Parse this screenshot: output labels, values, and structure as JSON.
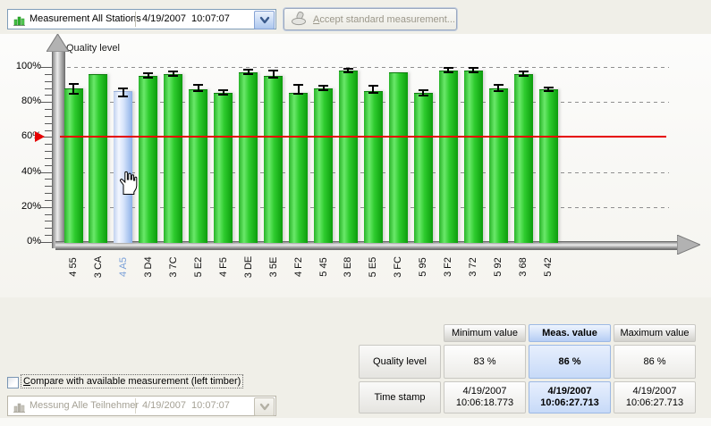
{
  "toolbar": {
    "measurement_combo": {
      "icon": "bar-chart-icon",
      "label": "Measurement All Stations",
      "datetime": "4/19/2007  10:07:07"
    },
    "accept_button": {
      "icon": "stamp-icon",
      "accel": "A",
      "rest": "ccept standard measurement..."
    }
  },
  "chart_data": {
    "type": "bar",
    "title": "Quality level",
    "xlabel": "",
    "ylabel": "",
    "ylim": [
      0,
      100
    ],
    "y_ticks": [
      {
        "v": 100,
        "label": "100%"
      },
      {
        "v": 80,
        "label": "80%"
      },
      {
        "v": 60,
        "label": "60%"
      },
      {
        "v": 40,
        "label": "40%"
      },
      {
        "v": 20,
        "label": "20%"
      },
      {
        "v": 0,
        "label": "0%"
      }
    ],
    "gridlines_pct": [
      100,
      80,
      40,
      20
    ],
    "grid": "dashed",
    "threshold_pct": 60,
    "threshold_color": "#e60000",
    "bar_color": "#2ecc2e",
    "selected_bar_color": "#aac4ef",
    "selected_label_color": "#7aa0d8",
    "selected_index": 2,
    "categories": [
      "4 55",
      "3 CA",
      "4 A5",
      "3 D4",
      "3 7C",
      "5 E2",
      "4 F5",
      "3 DE",
      "3 5E",
      "4 F2",
      "5 45",
      "3 E8",
      "5 E5",
      "3 FC",
      "5 95",
      "3 F2",
      "3 72",
      "5 92",
      "3 68",
      "5 42"
    ],
    "values": [
      88,
      96,
      86,
      95,
      96,
      87,
      85,
      97,
      95,
      85,
      88,
      98,
      86,
      97,
      85,
      98,
      98,
      88,
      96,
      87
    ],
    "error_low": [
      84.5,
      null,
      83,
      94,
      95,
      86,
      84,
      96,
      94,
      84.5,
      86.5,
      97,
      85,
      null,
      83.5,
      97,
      97,
      86,
      95,
      86
    ],
    "error_high": [
      90.5,
      null,
      88,
      96.5,
      97.5,
      90,
      86.5,
      98.5,
      98,
      90,
      89.5,
      99,
      89.5,
      null,
      86.5,
      99.5,
      99.5,
      90,
      97.5,
      88.5
    ]
  },
  "table": {
    "col_headers": [
      "Minimum value",
      "Meas. value",
      "Maximum value"
    ],
    "highlight_col": 1,
    "highlight_color": "#cfe0fa",
    "rows": [
      {
        "label": "Quality level",
        "values": [
          [
            "83 %"
          ],
          [
            "86 %"
          ],
          [
            "86 %"
          ]
        ]
      },
      {
        "label": "Time stamp",
        "values": [
          [
            "4/19/2007",
            "10:06:18.773"
          ],
          [
            "4/19/2007",
            "10:06:27.713"
          ],
          [
            "4/19/2007",
            "10:06:27.713"
          ]
        ]
      }
    ]
  },
  "compare": {
    "checked": false,
    "accel": "C",
    "rest": "ompare with available measurement (left timber)"
  },
  "compare_combo": {
    "icon": "bar-chart-icon",
    "label": "Messung Alle Teilnehmer",
    "datetime": "4/19/2007  10:07:07",
    "disabled": true
  }
}
